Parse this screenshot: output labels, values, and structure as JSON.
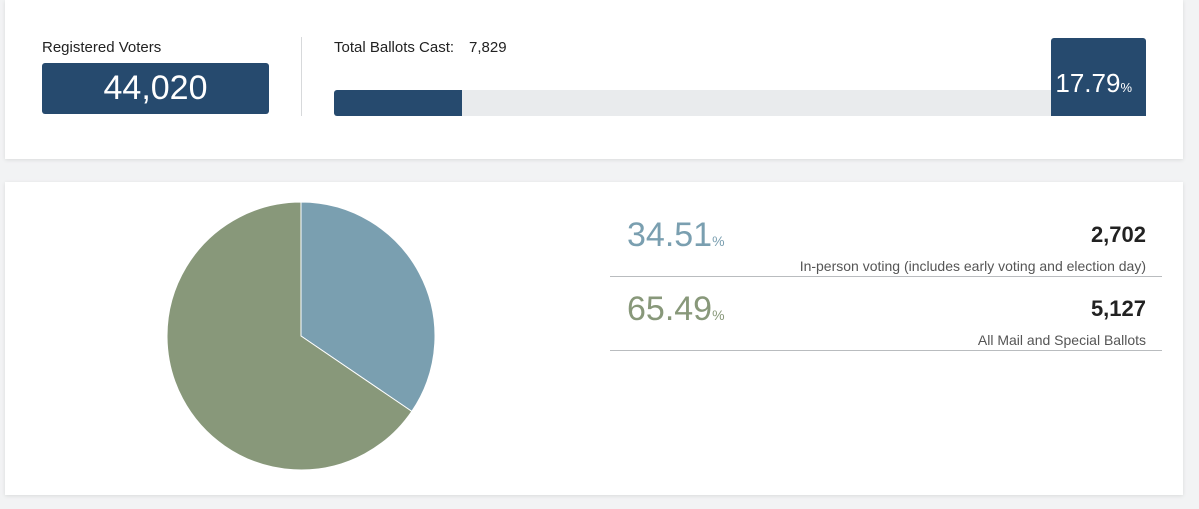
{
  "summary": {
    "registered_label": "Registered Voters",
    "registered_value": "44,020",
    "ballots_label": "Total Ballots Cast:",
    "ballots_value": "7,829",
    "turnout_pct": "17.79",
    "turnout_fraction": 0.1779,
    "pct_sign": "%"
  },
  "breakdown": {
    "rows": [
      {
        "pct": "34.51",
        "count": "2,702",
        "description": "In-person voting (includes early voting and election day)",
        "color": "#7a9fb0"
      },
      {
        "pct": "65.49",
        "count": "5,127",
        "description": "All Mail and Special Ballots",
        "color": "#88987a"
      }
    ]
  },
  "chart_data": {
    "type": "pie",
    "categories": [
      "In-person voting (includes early voting and election day)",
      "All Mail and Special Ballots"
    ],
    "values": [
      34.51,
      65.49
    ],
    "colors": [
      "#7a9fb0",
      "#88987a"
    ],
    "title": ""
  },
  "colors": {
    "accent": "#264a6e",
    "track": "#e9ebed"
  }
}
